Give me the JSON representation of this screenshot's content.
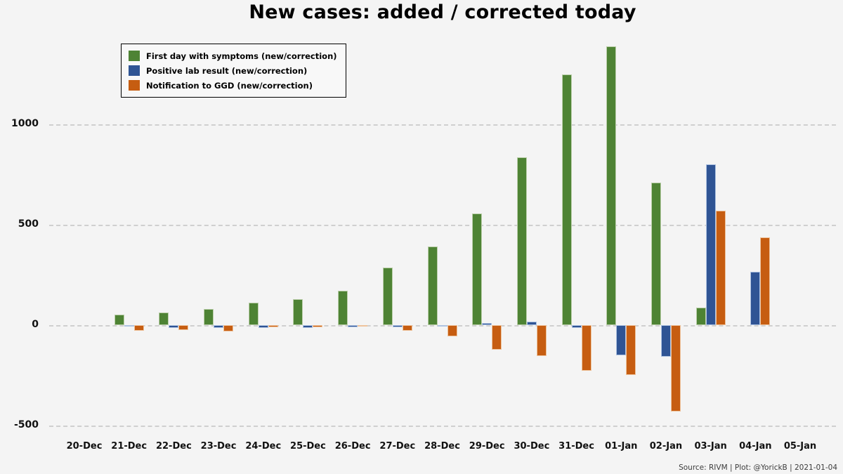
{
  "title": "New cases: added / corrected today",
  "footer": "Source: RIVM | Plot: @YorickB |  2021-01-04",
  "colors": {
    "background": "#f4f4f4",
    "gridline": "#cfcfcf",
    "green": "#4e8334",
    "blue": "#2f5494",
    "orange": "#c65d11"
  },
  "chart_data": {
    "type": "bar",
    "title": "New cases: added / corrected today",
    "categories": [
      "20-Dec",
      "21-Dec",
      "22-Dec",
      "23-Dec",
      "24-Dec",
      "25-Dec",
      "26-Dec",
      "27-Dec",
      "28-Dec",
      "29-Dec",
      "30-Dec",
      "31-Dec",
      "01-Jan",
      "02-Jan",
      "03-Jan",
      "04-Jan",
      "05-Jan"
    ],
    "series": [
      {
        "name": "First day with symptoms (new/correction)",
        "color": "#4e8334",
        "edge": "#bccfab",
        "values": [
          null,
          50,
          60,
          78,
          112,
          128,
          170,
          287,
          390,
          555,
          833,
          1245,
          1385,
          708,
          85,
          null,
          null
        ]
      },
      {
        "name": "Positive lab result (new/correction)",
        "color": "#2f5494",
        "edge": "#aec3e2",
        "values": [
          null,
          -8,
          -15,
          -15,
          -15,
          -15,
          -10,
          -10,
          -5,
          10,
          15,
          -15,
          -150,
          -160,
          800,
          265,
          null
        ]
      },
      {
        "name": "Notification to GGD (new/correction)",
        "color": "#c65d11",
        "edge": "#eec39c",
        "values": [
          null,
          -30,
          -25,
          -33,
          -10,
          -10,
          -5,
          -30,
          -57,
          -125,
          -155,
          -227,
          -250,
          -430,
          570,
          435,
          null
        ]
      }
    ],
    "yticks": [
      -500,
      0,
      500,
      1000
    ],
    "ylim": [
      -550,
      1425
    ],
    "grid": true,
    "legend_position": "top-left"
  }
}
